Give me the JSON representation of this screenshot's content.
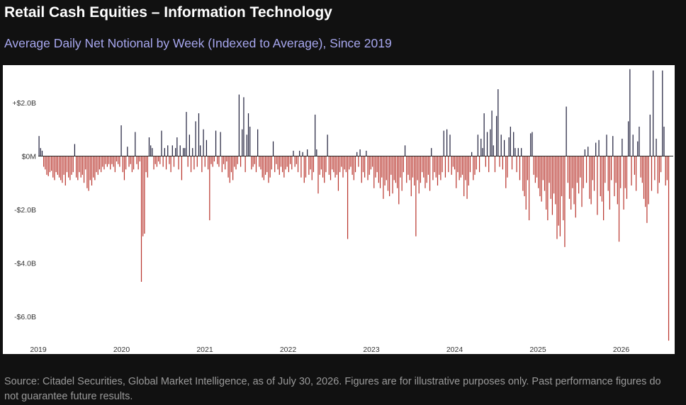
{
  "header": {
    "title": "Retail Cash Equities – Information Technology",
    "subtitle": "Average Daily Net Notional by Week (Indexed to Average), Since 2019"
  },
  "footer": {
    "source": "Source: Citadel Securities, Global Market Intelligence, as of July 30, 2026. Figures are for illustrative purposes only. Past performance figures do not guarantee future results."
  },
  "colors": {
    "positive": "#1c1c38",
    "negative": "#b8322a",
    "background": "#111111",
    "panel": "#ffffff"
  },
  "chart_data": {
    "type": "bar",
    "title": "",
    "xlabel": "",
    "ylabel": "",
    "units": "USD billions (weekly average daily net notional)",
    "grid": false,
    "legend": "none",
    "ylim": [
      -7.4,
      3.4
    ],
    "y_ticks": [
      {
        "value": 2,
        "label": "+$2.0B"
      },
      {
        "value": 0,
        "label": "$0M"
      },
      {
        "value": -2,
        "label": "-$2.0B"
      },
      {
        "value": -4,
        "label": "-$4.0B"
      },
      {
        "value": -6,
        "label": "-$6.0B"
      }
    ],
    "x_ticks": [
      "2019",
      "2020",
      "2021",
      "2022",
      "2023",
      "2024",
      "2025",
      "2026"
    ],
    "x_start_year": 2019,
    "x_end_year": 2026.58,
    "weekly_values": [
      0.75,
      0.3,
      0.2,
      -0.4,
      -0.5,
      -0.7,
      -0.75,
      -0.6,
      -0.55,
      -0.8,
      -0.9,
      -0.6,
      -0.7,
      -0.8,
      -0.9,
      -1.0,
      -0.7,
      -1.1,
      -0.6,
      -0.8,
      -0.9,
      -0.7,
      -0.6,
      0.45,
      -0.8,
      -0.9,
      -0.6,
      -0.8,
      -0.7,
      -1.0,
      -0.5,
      -1.2,
      -1.3,
      -0.9,
      -1.1,
      -0.8,
      -0.9,
      -0.6,
      -0.7,
      -0.5,
      -0.6,
      -0.4,
      -0.5,
      -0.3,
      -0.4,
      -0.3,
      -0.5,
      -0.3,
      -0.4,
      -0.6,
      -0.2,
      -0.3,
      -0.4,
      1.15,
      -0.6,
      -0.9,
      -0.5,
      0.35,
      -0.4,
      -0.3,
      -0.6,
      -0.5,
      0.9,
      -0.3,
      -0.5,
      -0.2,
      -4.7,
      -3.0,
      -2.9,
      -0.6,
      -0.8,
      0.7,
      0.4,
      0.3,
      -0.5,
      -0.3,
      -0.4,
      -0.2,
      -0.3,
      0.95,
      -0.4,
      0.3,
      -0.5,
      0.4,
      -0.3,
      -0.6,
      0.4,
      -0.4,
      0.3,
      0.7,
      -0.5,
      0.4,
      -0.9,
      0.3,
      0.3,
      1.65,
      -0.4,
      0.8,
      -0.6,
      0.3,
      -0.5,
      1.3,
      -0.4,
      1.6,
      0.4,
      -0.6,
      1.0,
      -0.4,
      0.6,
      -0.5,
      -2.4,
      -0.3,
      -0.4,
      -0.2,
      0.95,
      -0.3,
      -0.4,
      0.9,
      -0.6,
      -0.3,
      -0.5,
      -0.2,
      -0.8,
      -1.0,
      -0.6,
      -0.9,
      -0.4,
      -0.5,
      -0.3,
      2.3,
      -0.4,
      1.0,
      2.2,
      -0.6,
      0.8,
      1.6,
      1.1,
      -0.5,
      -0.4,
      -0.3,
      -0.6,
      1.0,
      -0.4,
      -0.5,
      -0.8,
      -0.9,
      -0.7,
      -0.6,
      -1.0,
      -0.8,
      -0.5,
      0.55,
      -0.6,
      -0.3,
      -0.5,
      -0.7,
      -0.4,
      -0.6,
      -0.8,
      -0.5,
      -0.4,
      -0.6,
      -0.3,
      -0.5,
      0.2,
      -0.4,
      -0.3,
      -0.6,
      0.2,
      -0.8,
      0.15,
      -1.0,
      -0.8,
      0.25,
      -0.7,
      -0.5,
      -0.9,
      -0.6,
      1.55,
      0.25,
      -1.4,
      -0.7,
      -0.5,
      -0.8,
      -1.0,
      -0.6,
      0.8,
      -0.7,
      -0.9,
      -0.5,
      -0.6,
      -0.8,
      -0.7,
      -1.3,
      -0.6,
      -0.4,
      -0.8,
      -0.5,
      -0.6,
      -3.1,
      -0.5,
      -0.4,
      -0.7,
      -0.9,
      -0.6,
      0.15,
      -0.4,
      0.25,
      -1.0,
      -0.6,
      -0.8,
      0.2,
      -0.9,
      -0.7,
      -0.5,
      -0.4,
      -1.2,
      -0.8,
      -0.6,
      -1.0,
      -1.2,
      -0.8,
      -1.6,
      -1.1,
      -0.9,
      -1.3,
      -1.5,
      -0.7,
      -1.4,
      -0.9,
      -1.0,
      -1.2,
      -1.8,
      -0.8,
      -1.3,
      -0.6,
      0.4,
      -1.0,
      -0.7,
      -0.9,
      -1.5,
      -0.8,
      -1.1,
      -3.0,
      -0.9,
      -1.4,
      -1.0,
      -0.6,
      -0.8,
      -1.2,
      -1.0,
      -0.7,
      -1.3,
      0.3,
      -0.9,
      -0.6,
      -0.8,
      -1.1,
      -0.7,
      -0.9,
      -0.6,
      0.95,
      -0.8,
      1.0,
      -0.6,
      0.8,
      -0.7,
      -0.4,
      -0.5,
      -1.2,
      -0.6,
      -0.9,
      -0.8,
      -0.7,
      -1.5,
      -0.9,
      -1.6,
      -1.1,
      -0.6,
      0.15,
      -0.9,
      -0.7,
      -0.5,
      0.8,
      -0.6,
      0.65,
      0.3,
      1.6,
      -0.4,
      0.9,
      -0.6,
      1.0,
      1.7,
      0.4,
      -0.6,
      1.5,
      2.5,
      -0.4,
      0.8,
      -0.5,
      0.6,
      -1.2,
      -0.8,
      0.7,
      1.1,
      -0.5,
      0.9,
      0.3,
      -0.6,
      0.3,
      -0.9,
      0.3,
      -1.3,
      -1.5,
      -2.0,
      -0.9,
      -2.4,
      0.85,
      0.9,
      -0.7,
      -1.0,
      -0.8,
      -1.2,
      -1.5,
      -1.7,
      -0.9,
      -1.3,
      -2.0,
      -2.4,
      -1.0,
      -1.6,
      -2.2,
      -1.4,
      -1.8,
      -3.1,
      -2.6,
      -3.0,
      -1.5,
      -2.4,
      -3.4,
      1.85,
      -1.0,
      -1.6,
      -2.0,
      -1.2,
      -1.8,
      -2.3,
      -1.0,
      -1.4,
      -0.8,
      -1.9,
      -1.2,
      0.25,
      -1.0,
      0.35,
      -1.6,
      -1.8,
      -0.9,
      -1.3,
      0.5,
      -2.2,
      0.6,
      -1.5,
      -1.7,
      -2.4,
      -1.0,
      0.8,
      -1.3,
      -2.0,
      -0.9,
      0.75,
      -1.5,
      -1.0,
      -1.8,
      -3.2,
      -1.2,
      0.65,
      -2.0,
      -1.2,
      -1.6,
      1.3,
      3.25,
      -1.1,
      0.8,
      -0.7,
      -1.3,
      0.55,
      1.1,
      -0.8,
      -1.0,
      -1.6,
      -1.9,
      -2.5,
      -1.8,
      1.55,
      -1.3,
      3.2,
      -0.9,
      0.65,
      -1.4,
      -1.0,
      -0.6,
      3.2,
      1.1,
      -1.1,
      -0.9,
      -6.9
    ]
  }
}
